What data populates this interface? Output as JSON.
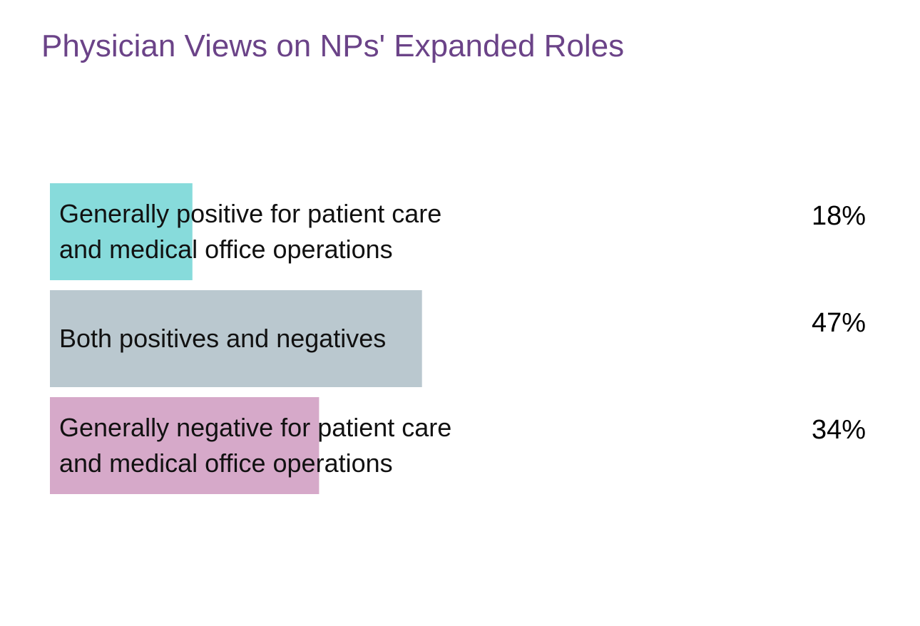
{
  "chart_data": {
    "type": "bar",
    "orientation": "horizontal",
    "title": "Physician Views on NPs' Expanded Roles",
    "categories": [
      "Generally positive for patient care and medical office operations",
      "Both positives and negatives",
      "Generally negative for patient care and medical office operations"
    ],
    "category_lines": [
      [
        "Generally positive for patient care",
        "and medical office operations"
      ],
      [
        "Both positives and negatives"
      ],
      [
        "Generally negative for patient care",
        "and medical office operations"
      ]
    ],
    "values": [
      18,
      47,
      34
    ],
    "value_labels": [
      "18%",
      "47%",
      "34%"
    ],
    "unit": "%",
    "xlim": [
      0,
      100
    ],
    "grid": false,
    "legend": "none",
    "colors": [
      "#87dbdb",
      "#bac8cf",
      "#d6a9c9"
    ],
    "title_color": "#6b4388"
  }
}
